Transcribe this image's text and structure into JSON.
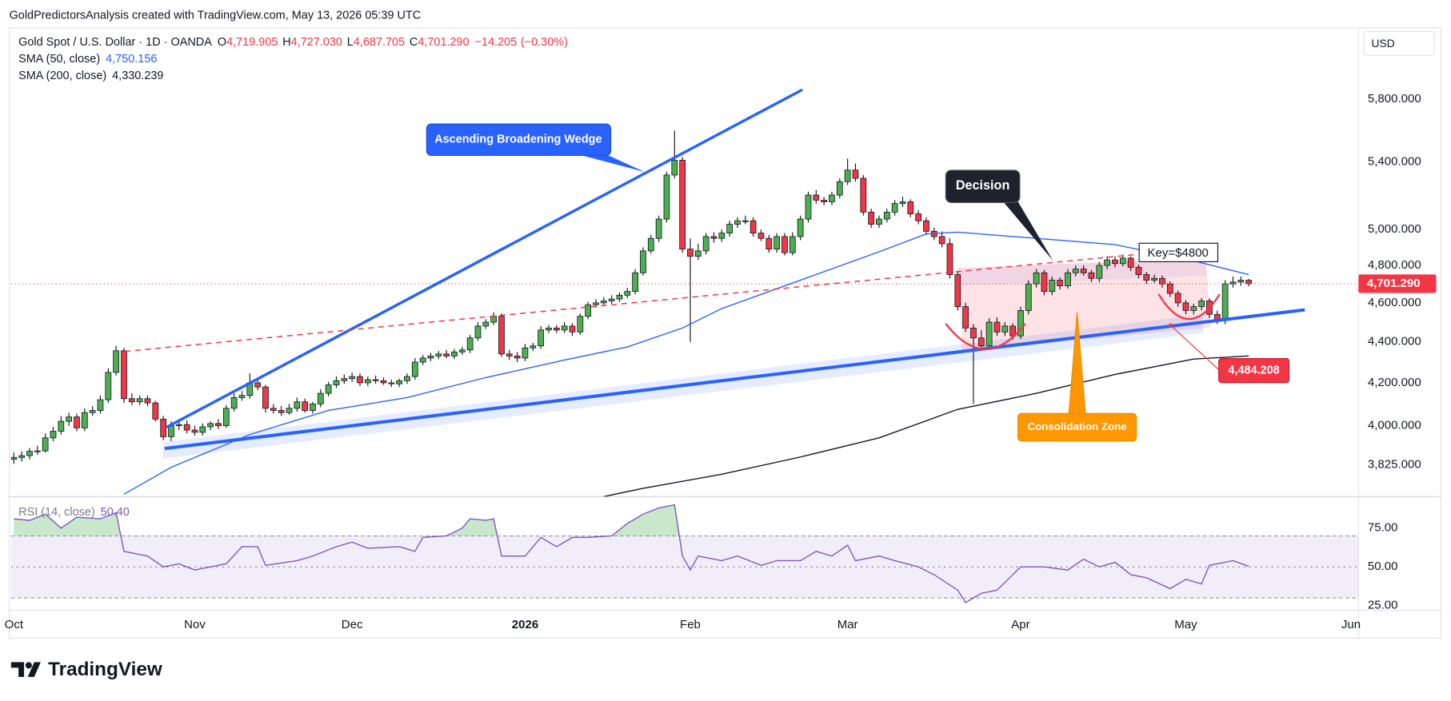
{
  "watermark": "GoldPredictorsAnalysis created with TradingView.com, May 13, 2026 05:39 UTC",
  "brand": "TradingView",
  "chart_data": [
    {
      "type": "candlestick",
      "title": "Gold Spot / U.S. Dollar · 1D · OANDA",
      "currency": "USD",
      "legend_values": [
        {
          "key": "O",
          "value": 4719.905,
          "label": "4,719.905"
        },
        {
          "key": "H",
          "value": 4727.03,
          "label": "4,727.030"
        },
        {
          "key": "L",
          "value": 4687.705,
          "label": "4,687.705"
        },
        {
          "key": "C",
          "value": 4701.29,
          "label": "4,701.290"
        }
      ],
      "change": {
        "value": -14.205,
        "label": "−14.205"
      },
      "change_pct": {
        "value": -0.3,
        "label": "(−0.30%)"
      },
      "up_color": "#4caf50",
      "down_color": "#f23645",
      "open": [
        3850,
        3858,
        3866,
        3885,
        3887,
        3945,
        3975,
        4020,
        4040,
        3990,
        4060,
        4070,
        4120,
        4250,
        4356,
        4125,
        4110,
        4125,
        4105,
        4030,
        3950,
        4000,
        4005,
        3980,
        3970,
        3995,
        4010,
        4000,
        4080,
        4130,
        4140,
        4200,
        4180,
        4080,
        4070,
        4060,
        4080,
        4110,
        4070,
        4100,
        4150,
        4190,
        4210,
        4220,
        4230,
        4200,
        4215,
        4210,
        4200,
        4195,
        4210,
        4230,
        4300,
        4320,
        4330,
        4340,
        4330,
        4350,
        4360,
        4420,
        4480,
        4500,
        4530,
        4340,
        4330,
        4320,
        4370,
        4380,
        4460,
        4470,
        4460,
        4480,
        4450,
        4530,
        4590,
        4600,
        4610,
        4620,
        4640,
        4660,
        4760,
        4880,
        4950,
        5060,
        5320,
        5410,
        4890,
        4850,
        4880,
        4960,
        4950,
        4980,
        5030,
        5050,
        5050,
        4980,
        4950,
        4890,
        4960,
        4870,
        4960,
        5060,
        5200,
        5170,
        5160,
        5200,
        5280,
        5350,
        5300,
        5100,
        5030,
        5060,
        5100,
        5150,
        5160,
        5090,
        5050,
        4990,
        4960,
        4920,
        4750,
        4580,
        4470,
        4420,
        4380,
        4500,
        4450,
        4480,
        4430,
        4560,
        4700,
        4760,
        4660,
        4720,
        4690,
        4760,
        4780,
        4760,
        4730,
        4800,
        4830,
        4810,
        4840,
        4790,
        4750,
        4720,
        4730,
        4700,
        4650,
        4600,
        4560,
        4580,
        4610,
        4540,
        4510,
        4700,
        4710,
        4719.905
      ],
      "high": [
        3880,
        3885,
        3900,
        3910,
        3965,
        3995,
        4045,
        4060,
        4055,
        4080,
        4090,
        4140,
        4270,
        4381,
        4370,
        4150,
        4140,
        4140,
        4115,
        4045,
        4020,
        4030,
        4025,
        4000,
        4010,
        4020,
        4030,
        4095,
        4150,
        4160,
        4245,
        4220,
        4190,
        4100,
        4090,
        4100,
        4130,
        4125,
        4110,
        4170,
        4205,
        4230,
        4240,
        4250,
        4245,
        4230,
        4235,
        4225,
        4215,
        4220,
        4245,
        4320,
        4335,
        4345,
        4355,
        4360,
        4365,
        4375,
        4435,
        4500,
        4515,
        4550,
        4545,
        4360,
        4350,
        4390,
        4395,
        4480,
        4485,
        4485,
        4500,
        4495,
        4545,
        4605,
        4620,
        4630,
        4640,
        4655,
        4680,
        4780,
        4900,
        4970,
        5080,
        5340,
        5595,
        5430,
        4950,
        4920,
        4980,
        4985,
        5000,
        5050,
        5070,
        5080,
        5070,
        5000,
        4970,
        4980,
        4980,
        4985,
        5080,
        5220,
        5230,
        5190,
        5220,
        5300,
        5420,
        5390,
        5320,
        5120,
        5080,
        5120,
        5170,
        5190,
        5175,
        5110,
        5070,
        5010,
        4990,
        4950,
        4770,
        4600,
        4490,
        4460,
        4520,
        4525,
        4500,
        4495,
        4580,
        4720,
        4780,
        4775,
        4740,
        4735,
        4780,
        4800,
        4800,
        4775,
        4820,
        4850,
        4850,
        4860,
        4850,
        4805,
        4765,
        4750,
        4745,
        4715,
        4665,
        4615,
        4595,
        4625,
        4625,
        4560,
        4720,
        4740,
        4740,
        4727.03
      ],
      "low": [
        3830,
        3840,
        3850,
        3870,
        3880,
        3930,
        3960,
        4000,
        3975,
        3975,
        4045,
        4055,
        4105,
        4235,
        4105,
        4095,
        4095,
        4090,
        4020,
        3935,
        3930,
        3980,
        3965,
        3955,
        3955,
        3980,
        3985,
        3990,
        4065,
        4115,
        4125,
        4165,
        4060,
        4055,
        4045,
        4050,
        4065,
        4060,
        4055,
        4085,
        4135,
        4175,
        4195,
        4205,
        4185,
        4185,
        4195,
        4190,
        4180,
        4180,
        4195,
        4215,
        4285,
        4305,
        4315,
        4320,
        4315,
        4335,
        4345,
        4405,
        4465,
        4485,
        4325,
        4310,
        4300,
        4305,
        4355,
        4365,
        4445,
        4445,
        4445,
        4430,
        4435,
        4515,
        4575,
        4585,
        4595,
        4605,
        4625,
        4645,
        4745,
        4865,
        4930,
        5040,
        5300,
        4870,
        4400,
        4830,
        4860,
        4925,
        4930,
        4960,
        5010,
        5030,
        4960,
        4935,
        4870,
        4870,
        4855,
        4855,
        4940,
        5040,
        5150,
        5140,
        5140,
        5180,
        5260,
        5280,
        5080,
        5010,
        5010,
        5040,
        5080,
        5130,
        5070,
        5030,
        4970,
        4940,
        4900,
        4730,
        4560,
        4450,
        4100,
        4360,
        4360,
        4430,
        4430,
        4410,
        4415,
        4540,
        4680,
        4640,
        4640,
        4670,
        4675,
        4740,
        4745,
        4710,
        4710,
        4780,
        4790,
        4795,
        4770,
        4730,
        4700,
        4705,
        4680,
        4630,
        4580,
        4540,
        4540,
        4560,
        4520,
        4490,
        4490,
        4680,
        4690,
        4687.705
      ],
      "close": [
        3858,
        3866,
        3885,
        3887,
        3945,
        3975,
        4020,
        4040,
        3990,
        4060,
        4070,
        4120,
        4250,
        4356,
        4125,
        4110,
        4125,
        4105,
        4030,
        3950,
        4000,
        4005,
        3980,
        3970,
        3995,
        4010,
        4000,
        4080,
        4130,
        4140,
        4200,
        4180,
        4080,
        4070,
        4060,
        4080,
        4110,
        4070,
        4100,
        4150,
        4190,
        4210,
        4220,
        4230,
        4200,
        4215,
        4210,
        4200,
        4195,
        4210,
        4230,
        4300,
        4320,
        4330,
        4340,
        4330,
        4350,
        4360,
        4420,
        4480,
        4500,
        4530,
        4340,
        4330,
        4320,
        4370,
        4380,
        4460,
        4470,
        4460,
        4480,
        4450,
        4530,
        4590,
        4600,
        4610,
        4620,
        4640,
        4660,
        4760,
        4880,
        4950,
        5060,
        5320,
        5410,
        4890,
        4850,
        4880,
        4960,
        4950,
        4980,
        5030,
        5050,
        5050,
        4980,
        4950,
        4890,
        4960,
        4870,
        4960,
        5060,
        5200,
        5170,
        5160,
        5200,
        5280,
        5350,
        5300,
        5100,
        5030,
        5060,
        5100,
        5150,
        5160,
        5090,
        5050,
        4990,
        4960,
        4920,
        4750,
        4580,
        4470,
        4420,
        4380,
        4500,
        4450,
        4480,
        4430,
        4560,
        4700,
        4760,
        4660,
        4720,
        4690,
        4760,
        4780,
        4760,
        4730,
        4800,
        4830,
        4810,
        4840,
        4790,
        4750,
        4720,
        4730,
        4700,
        4650,
        4600,
        4560,
        4580,
        4610,
        4540,
        4510,
        4700,
        4710,
        4720,
        4701.29
      ],
      "xlim": [
        -0.35,
        170.95
      ],
      "xticks": [
        {
          "value": 0,
          "label": "Oct"
        },
        {
          "value": 23,
          "label": "Nov"
        },
        {
          "value": 43,
          "label": "Dec"
        },
        {
          "value": 65,
          "label": "2026"
        },
        {
          "value": 86,
          "label": "Feb"
        },
        {
          "value": 106,
          "label": "Mar"
        },
        {
          "value": 128,
          "label": "Apr"
        },
        {
          "value": 149,
          "label": "May"
        },
        {
          "value": 170,
          "label": "Jun"
        }
      ],
      "ylim": [
        3690,
        6290
      ],
      "log_scale": true,
      "yticks": [
        {
          "value": 3825,
          "label": "3,825.000"
        },
        {
          "value": 4000,
          "label": "4,000.000"
        },
        {
          "value": 4200,
          "label": "4,200.000"
        },
        {
          "value": 4400,
          "label": "4,400.000"
        },
        {
          "value": 4600,
          "label": "4,600.000"
        },
        {
          "value": 4800,
          "label": "4,800.000"
        },
        {
          "value": 5000,
          "label": "5,000.000"
        },
        {
          "value": 5400,
          "label": "5,400.000"
        },
        {
          "value": 5800,
          "label": "5,800.000"
        }
      ],
      "overlays": [
        {
          "name": "SMA (50, close)",
          "color": "#2962ff",
          "legend_label": "4,750.156",
          "x": [
            14,
            20,
            30,
            40,
            50,
            60,
            70,
            78,
            85,
            90,
            100,
            110,
            116,
            120,
            130,
            140,
            150,
            157
          ],
          "values": [
            3700,
            3815,
            3960,
            4070,
            4130,
            4225,
            4310,
            4375,
            4470,
            4570,
            4720,
            4875,
            4975,
            4985,
            4950,
            4915,
            4825,
            4750.156
          ]
        },
        {
          "name": "SMA (200, close)",
          "color": "#131722",
          "legend_label": "4,330.239",
          "x": [
            75,
            80,
            90,
            100,
            110,
            120,
            130,
            140,
            150,
            157
          ],
          "values": [
            3690,
            3725,
            3785,
            3860,
            3945,
            4075,
            4150,
            4240,
            4315,
            4330.239
          ]
        }
      ],
      "last_price": {
        "value": 4701.29,
        "label": "4,701.290"
      },
      "price_marker": {
        "value": 4484.208,
        "label": "4,484.208"
      },
      "annotations": [
        "Ascending Broadening Wedge",
        "Decision",
        "Key=$4800",
        "Consolidation Zone"
      ]
    },
    {
      "type": "line",
      "title": "RSI (14, close)",
      "color": "#7e57c2",
      "legend_label": "50.40",
      "overbought_color": "#4caf50",
      "x": [
        0,
        2,
        4,
        6,
        8,
        11,
        13,
        14,
        17,
        19,
        21,
        23,
        25,
        27,
        29,
        31,
        32,
        36,
        38,
        41,
        43,
        45,
        49,
        51,
        52,
        55,
        57,
        58,
        60,
        61,
        62,
        65,
        67,
        69,
        71,
        73,
        76,
        78,
        80,
        82,
        84,
        85,
        86,
        87,
        90,
        92,
        95,
        97,
        100,
        102,
        104,
        106,
        107,
        110,
        112,
        115,
        117,
        120,
        121,
        123,
        125,
        127,
        128,
        131,
        134,
        136,
        138,
        140,
        142,
        144,
        147,
        149,
        151,
        152,
        155,
        157
      ],
      "values": [
        81,
        80,
        84,
        75,
        82,
        81,
        85,
        60,
        57,
        50,
        52,
        48,
        50,
        52,
        63,
        63,
        51,
        54,
        57,
        63,
        66,
        62,
        63,
        60,
        69,
        70,
        75,
        81,
        80,
        81,
        57,
        57,
        69,
        63,
        69,
        69,
        70,
        78,
        84,
        88,
        90,
        57,
        48,
        57,
        54,
        57,
        51,
        54,
        54,
        60,
        57,
        64,
        54,
        57,
        54,
        50,
        45,
        35,
        27,
        33,
        35,
        45,
        50,
        50,
        48,
        55,
        50,
        53,
        45,
        43,
        36,
        42,
        39,
        51,
        54,
        50.4
      ],
      "bands": {
        "upper": 70,
        "middle": 50,
        "lower": 30
      },
      "xlim": [
        -0.35,
        170.95
      ],
      "ylim": [
        22,
        95.3
      ],
      "yticks": [
        {
          "value": 25,
          "label": "25.00"
        },
        {
          "value": 50,
          "label": "50.00"
        },
        {
          "value": 75,
          "label": "75.00"
        }
      ]
    }
  ]
}
